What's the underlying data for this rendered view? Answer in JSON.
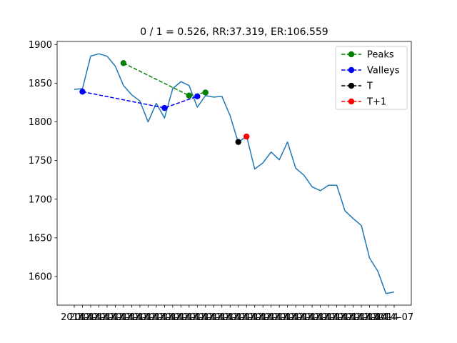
{
  "chart_data": {
    "type": "line",
    "title": "0 / 1 = 0.526, RR:37.319, ER:106.559",
    "xlabel": "",
    "ylabel": "",
    "ylim": [
      1580,
      1900
    ],
    "yticks": [
      1600,
      1650,
      1700,
      1750,
      1800,
      1850,
      1900
    ],
    "x_index_range": [
      0,
      39
    ],
    "x_tick_labels": [
      "2014-",
      "2014-",
      "2014-",
      "2014-",
      "2014-",
      "2014-",
      "2014-",
      "2014-",
      "2014-",
      "2014-",
      "2014-",
      "2014-",
      "2014-",
      "2014-",
      "2014-",
      "2014-",
      "2014-",
      "2014-",
      "2014-",
      "2014-",
      "2014-",
      "2014-",
      "2014-",
      "2014-",
      "2014-",
      "2014-",
      "2014-",
      "2014-",
      "2014-",
      "2014-",
      "2014-",
      "2014-",
      "2014-",
      "2014-",
      "2014-",
      "2014-",
      "2014-",
      "2014-",
      "2014-",
      "2014-07"
    ],
    "series": [
      {
        "style": "line",
        "color": "#1f77b4",
        "y": [
          1842,
          1843,
          1885,
          1888,
          1885,
          1872,
          1847,
          1835,
          1827,
          1800,
          1824,
          1805,
          1843,
          1852,
          1847,
          1819,
          1834,
          1832,
          1833,
          1808,
          1773,
          1782,
          1739,
          1747,
          1761,
          1751,
          1774,
          1740,
          1731,
          1716,
          1711,
          1718,
          1718,
          1685,
          1675,
          1666,
          1624,
          1607,
          1578,
          1580
        ]
      },
      {
        "name": "Peaks",
        "style": "dashed-marker",
        "color": "#008000",
        "points": [
          [
            6,
            1876
          ],
          [
            14,
            1834
          ],
          [
            16,
            1838
          ]
        ]
      },
      {
        "name": "Valleys",
        "style": "dashed-marker",
        "color": "#0000ff",
        "points": [
          [
            1,
            1839
          ],
          [
            11,
            1818
          ],
          [
            15,
            1833
          ]
        ]
      },
      {
        "name": "T",
        "style": "dashed-marker",
        "color": "#000000",
        "points": [
          [
            20,
            1774
          ]
        ]
      },
      {
        "name": "T+1",
        "style": "dashed-marker",
        "color": "#ff0000",
        "points": [
          [
            21,
            1781
          ]
        ]
      }
    ],
    "legend": {
      "placement": "top-right",
      "entries": [
        "Peaks",
        "Valleys",
        "T",
        "T+1"
      ]
    }
  }
}
